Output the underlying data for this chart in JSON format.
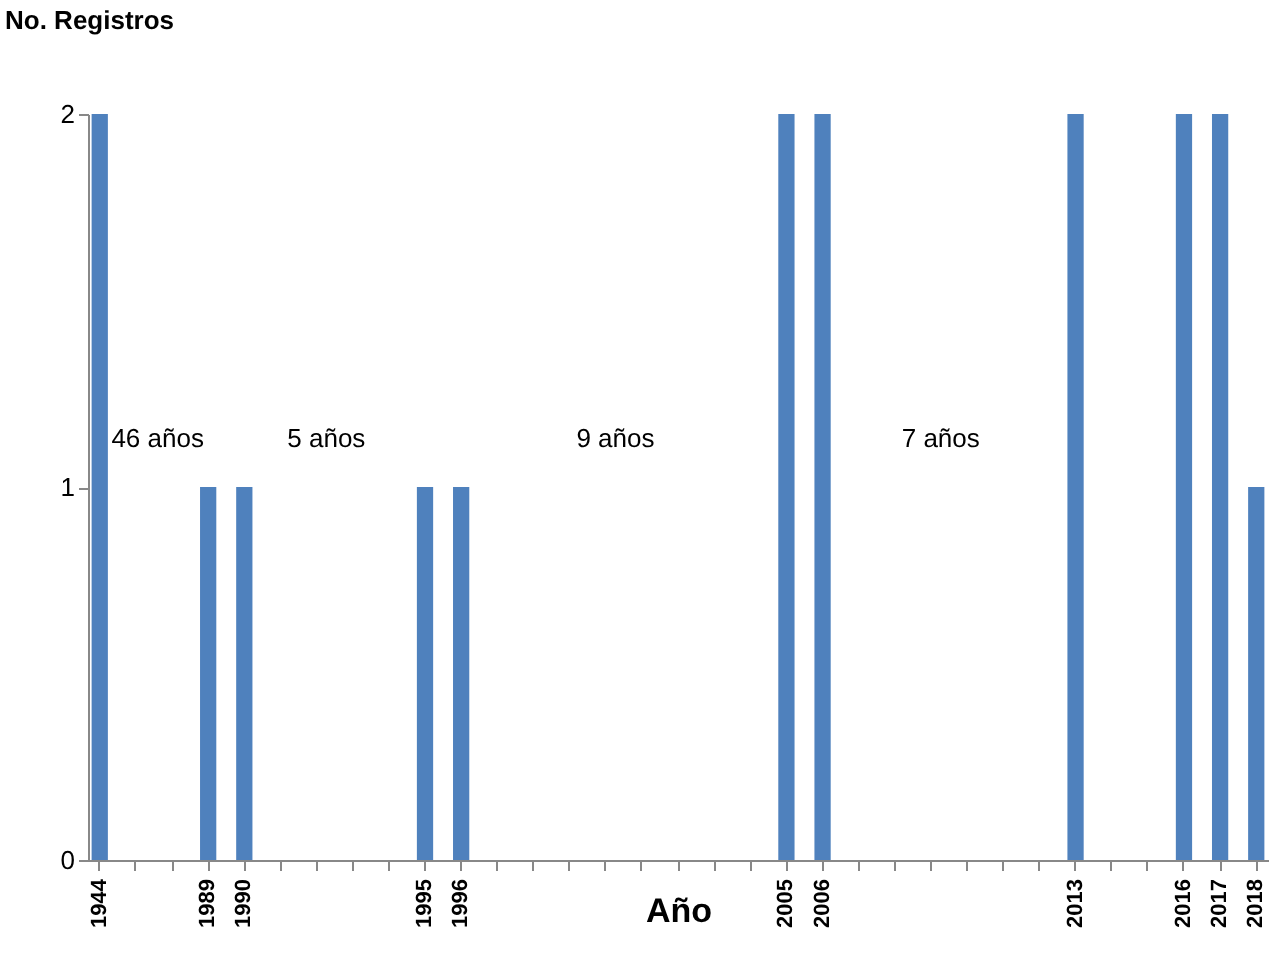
{
  "chart_data": {
    "type": "bar",
    "xlabel": "Año",
    "ylabel": "No. Registros",
    "categories": [
      "1944",
      null,
      null,
      "1989",
      "1990",
      null,
      null,
      null,
      null,
      "1995",
      "1996",
      null,
      null,
      null,
      null,
      null,
      null,
      null,
      null,
      "2005",
      "2006",
      null,
      null,
      null,
      null,
      null,
      null,
      "2013",
      null,
      null,
      "2016",
      "2017",
      "2018"
    ],
    "values": [
      2,
      null,
      null,
      1,
      1,
      null,
      null,
      null,
      null,
      1,
      1,
      null,
      null,
      null,
      null,
      null,
      null,
      null,
      null,
      2,
      2,
      null,
      null,
      null,
      null,
      null,
      null,
      2,
      null,
      null,
      2,
      2,
      1
    ],
    "color": "#4f81bd",
    "ylim": [
      0,
      2
    ],
    "yticks": [
      0,
      1,
      2
    ],
    "grid": false,
    "annotations": [
      "46 años",
      "5 años",
      "9 años",
      "7 años"
    ]
  }
}
